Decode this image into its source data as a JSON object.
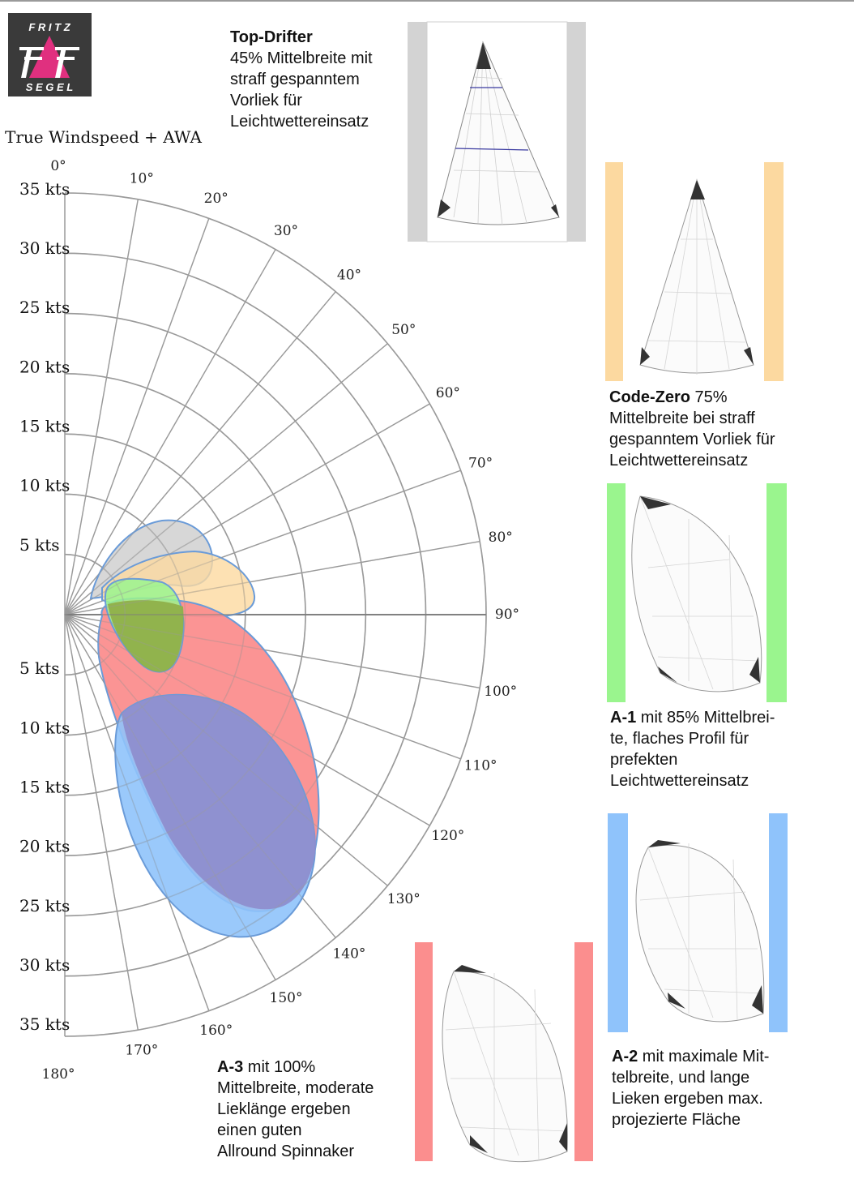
{
  "logo": {
    "line1": "F R I T Z",
    "line2": "S E G E L",
    "colors": {
      "background": "#3a3a3a",
      "accent": "#e0307f",
      "text": "#ffffff"
    }
  },
  "chart_title": "True Windspeed + AWA",
  "angle_labels": [
    "0°",
    "10°",
    "20°",
    "30°",
    "40°",
    "50°",
    "60°",
    "70°",
    "80°",
    "90°",
    "100°",
    "110°",
    "120°",
    "130°",
    "140°",
    "150°",
    "160°",
    "170°",
    "180°"
  ],
  "speed_labels_upper": [
    "35 kts",
    "30 kts",
    "25 kts",
    "20 kts",
    "15 kts",
    "10 kts",
    "5 kts"
  ],
  "speed_labels_lower": [
    "5 kts",
    "10 kts",
    "15 kts",
    "20 kts",
    "25 kts",
    "30 kts",
    "35 kts"
  ],
  "sails": [
    {
      "id": "top-drifter",
      "color": "#c8c8c8",
      "title": "Top-Drifter",
      "lines": [
        "45% Mittelbreite mit",
        "straff gespanntem",
        "Vorliek für",
        "Leichtwettereinsatz"
      ]
    },
    {
      "id": "code-zero",
      "color": "#fcd9a0",
      "title": "Code-Zero",
      "title_suffix": " 75%",
      "lines": [
        "Mittelbreite bei straff",
        "gespanntem Vorliek für",
        "Leichtwettereinsatz"
      ]
    },
    {
      "id": "a1",
      "color": "#9af58e",
      "title": "A-1",
      "title_suffix": " mit 85% Mittelbrei-",
      "lines": [
        "te, flaches Profil für",
        "prefekten",
        "Leichtwettereinsatz"
      ]
    },
    {
      "id": "a2",
      "color": "#8fc3fb",
      "title": "A-2",
      "title_suffix": " mit maximale Mit-",
      "lines": [
        "telbreite, und lange",
        "Lieken ergeben max.",
        "projezierte Fläche"
      ]
    },
    {
      "id": "a3",
      "color": "#fb8e8e",
      "title": "A-3",
      "title_suffix": " mit 100%",
      "lines": [
        "Mittelbreite, moderate",
        "Lieklänge ergeben",
        "einen guten",
        "Allround Spinnaker"
      ]
    }
  ]
}
